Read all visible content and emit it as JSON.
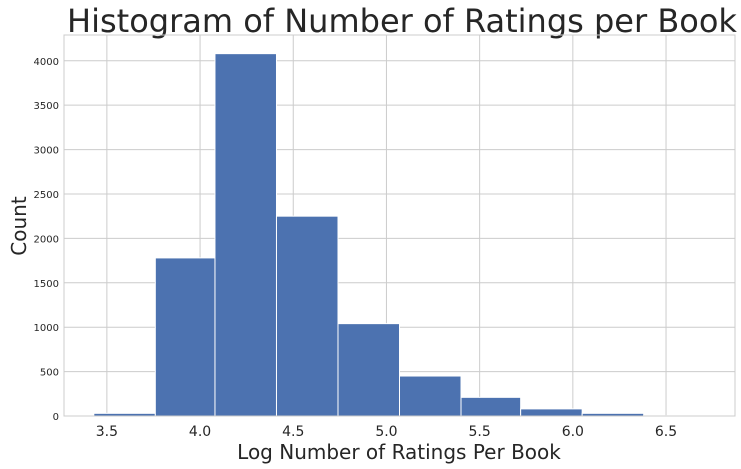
{
  "chart_data": {
    "type": "bar",
    "title": "Histogram of Number of Ratings per Book",
    "xlabel": "Log Number of Ratings Per Book",
    "ylabel": "Count",
    "bins": [
      {
        "start": 3.43,
        "end": 3.76,
        "count": 30
      },
      {
        "start": 3.76,
        "end": 4.08,
        "count": 1780
      },
      {
        "start": 4.08,
        "end": 4.41,
        "count": 4080
      },
      {
        "start": 4.41,
        "end": 4.74,
        "count": 2250
      },
      {
        "start": 4.74,
        "end": 5.07,
        "count": 1040
      },
      {
        "start": 5.07,
        "end": 5.4,
        "count": 450
      },
      {
        "start": 5.4,
        "end": 5.72,
        "count": 210
      },
      {
        "start": 5.72,
        "end": 6.05,
        "count": 80
      },
      {
        "start": 6.05,
        "end": 6.38,
        "count": 30
      },
      {
        "start": 6.38,
        "end": 6.71,
        "count": 4
      }
    ],
    "xticks": [
      "3.5",
      "4.0",
      "4.5",
      "5.0",
      "5.5",
      "6.0",
      "6.5"
    ],
    "xtick_values": [
      3.5,
      4.0,
      4.5,
      5.0,
      5.5,
      6.0,
      6.5
    ],
    "yticks": [
      "0",
      "500",
      "1000",
      "1500",
      "2000",
      "2500",
      "3000",
      "3500",
      "4000"
    ],
    "ytick_values": [
      0,
      500,
      1000,
      1500,
      2000,
      2500,
      3000,
      3500,
      4000
    ],
    "xlim": [
      3.27,
      6.87
    ],
    "ylim": [
      0,
      4290
    ],
    "grid": true,
    "colors": {
      "bar": "#4c72b0",
      "bar_edge": "#ffffff",
      "grid": "#cccccc",
      "text": "#262626"
    }
  }
}
